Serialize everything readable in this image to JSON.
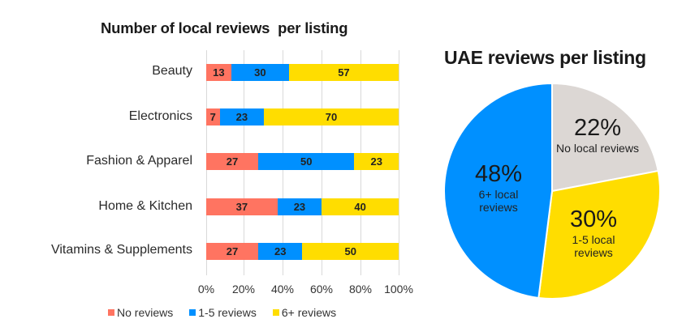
{
  "bar_chart": {
    "title": "Number of local reviews  per listing",
    "categories": [
      "Beauty",
      "Electronics",
      "Fashion & Apparel",
      "Home & Kitchen",
      "Vitamins & Supplements"
    ],
    "series": [
      {
        "name": "No reviews",
        "color": "#FF7461",
        "values": [
          13,
          7,
          27,
          37,
          27
        ]
      },
      {
        "name": "1-5 reviews",
        "color": "#0090FF",
        "values": [
          30,
          23,
          50,
          23,
          23
        ]
      },
      {
        "name": "6+ reviews",
        "color": "#FFDD00",
        "values": [
          57,
          70,
          23,
          40,
          50
        ]
      }
    ],
    "x_ticks": [
      "0%",
      "20%",
      "40%",
      "60%",
      "80%",
      "100%"
    ],
    "legend": [
      "No reviews",
      "1-5 reviews",
      "6+ reviews"
    ]
  },
  "pie_chart": {
    "title": "UAE reviews per listing",
    "slices": [
      {
        "pct": "22%",
        "label": "No local reviews",
        "value": 22,
        "color": "#DCD7D4"
      },
      {
        "pct": "30%",
        "label_line1": "1-5 local",
        "label_line2": "reviews",
        "value": 30,
        "color": "#FFDD00"
      },
      {
        "pct": "48%",
        "label_line1": "6+ local",
        "label_line2": "reviews",
        "value": 48,
        "color": "#0090FF"
      }
    ]
  },
  "chart_data": [
    {
      "type": "bar",
      "orientation": "horizontal",
      "stacked": "percent",
      "title": "Number of local reviews  per listing",
      "categories": [
        "Beauty",
        "Electronics",
        "Fashion & Apparel",
        "Home & Kitchen",
        "Vitamins & Supplements"
      ],
      "series": [
        {
          "name": "No reviews",
          "values": [
            13,
            7,
            27,
            37,
            27
          ]
        },
        {
          "name": "1-5 reviews",
          "values": [
            30,
            23,
            50,
            23,
            23
          ]
        },
        {
          "name": "6+ reviews",
          "values": [
            57,
            70,
            23,
            40,
            50
          ]
        }
      ],
      "xlabel": "",
      "ylabel": "",
      "xlim": [
        0,
        100
      ],
      "x_ticks": [
        "0%",
        "20%",
        "40%",
        "60%",
        "80%",
        "100%"
      ],
      "grid": true,
      "legend_position": "bottom"
    },
    {
      "type": "pie",
      "title": "UAE reviews per listing",
      "labels": [
        "No local reviews",
        "1-5 local reviews",
        "6+ local reviews"
      ],
      "values": [
        22,
        30,
        48
      ]
    }
  ]
}
